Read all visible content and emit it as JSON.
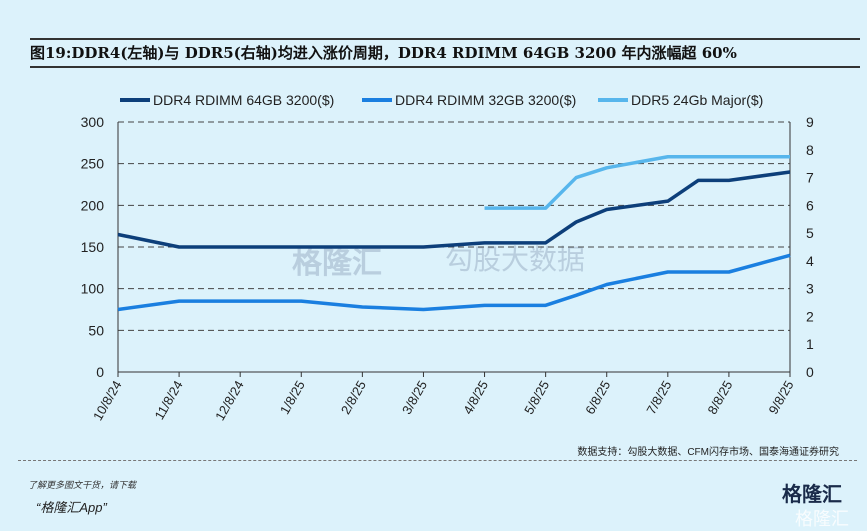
{
  "title": "图19:DDR4(左轴)与 DDR5(右轴)均进入涨价周期，DDR4 RDIMM 64GB 3200 年内涨幅超 60%",
  "source": "数据支持：勾股大数据、CFM闪存市场、国泰海通证券研究",
  "footer": {
    "download": "了解更多图文干货，请下载",
    "app": "“格隆汇App”",
    "logo": "格隆汇",
    "logo_mark": "格隆汇"
  },
  "watermark": {
    "left": "格隆汇",
    "right": "勾股大数据"
  },
  "chart_data": {
    "type": "line",
    "title": "",
    "x": [
      "10/8/24",
      "11/8/24",
      "12/8/24",
      "1/8/25",
      "2/8/25",
      "3/8/25",
      "4/8/25",
      "5/8/25",
      "6/8/25",
      "7/8/25",
      "8/8/25",
      "9/8/25"
    ],
    "left_axis": {
      "range": [
        0,
        300
      ],
      "ticks": [
        "0",
        "50",
        "100",
        "150",
        "200",
        "250",
        "300"
      ]
    },
    "right_axis": {
      "range": [
        0,
        9
      ],
      "ticks": [
        "0",
        "1",
        "2",
        "3",
        "4",
        "5",
        "6",
        "7",
        "8",
        "9"
      ]
    },
    "grid": "horizontal dashed",
    "legend_position": "top",
    "series": [
      {
        "name": "DDR4 RDIMM 64GB 3200($)",
        "axis": "left",
        "color": "#0d3f7a",
        "points": [
          [
            0,
            165
          ],
          [
            1,
            150
          ],
          [
            5,
            150
          ],
          [
            6,
            155
          ],
          [
            7,
            155
          ],
          [
            7.5,
            180
          ],
          [
            8,
            195
          ],
          [
            9,
            205
          ],
          [
            9.5,
            230
          ],
          [
            10,
            230
          ],
          [
            11,
            240
          ]
        ]
      },
      {
        "name": "DDR4 RDIMM 32GB 3200($)",
        "axis": "left",
        "color": "#1a7fe0",
        "points": [
          [
            0,
            75
          ],
          [
            1,
            85
          ],
          [
            3,
            85
          ],
          [
            4,
            78
          ],
          [
            5,
            75
          ],
          [
            6,
            80
          ],
          [
            7,
            80
          ],
          [
            7.5,
            92
          ],
          [
            8,
            105
          ],
          [
            9,
            120
          ],
          [
            10,
            120
          ],
          [
            11,
            140
          ]
        ]
      },
      {
        "name": "DDR5 24Gb Major($)",
        "axis": "right",
        "color": "#57b6ec",
        "points": [
          [
            6,
            5.9
          ],
          [
            7,
            5.9
          ],
          [
            7.5,
            7.0
          ],
          [
            8,
            7.35
          ],
          [
            9,
            7.75
          ],
          [
            11,
            7.75
          ]
        ]
      }
    ]
  }
}
